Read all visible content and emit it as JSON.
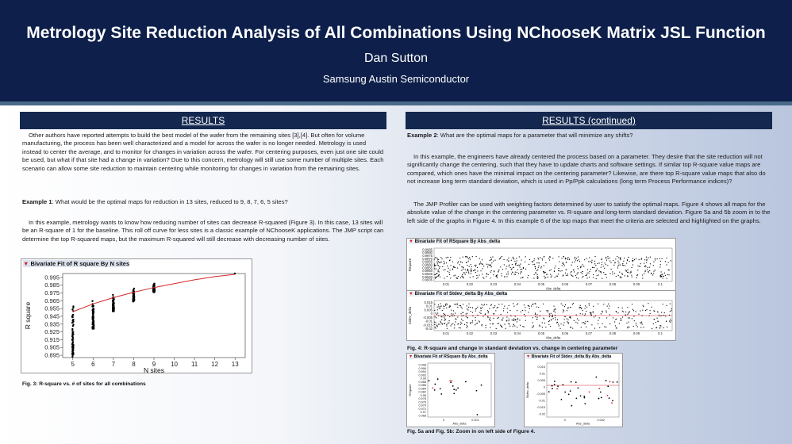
{
  "header": {
    "title": "Metrology Site Reduction Analysis of All Combinations Using NChooseK Matrix JSL Function",
    "author": "Dan Sutton",
    "org": "Samsung Austin Semiconductor"
  },
  "left": {
    "heading": "RESULTS",
    "p1": "Other authors have reported attempts to build the best model of the wafer from the remaining sites [3],[4]. But often for volume manufacturing, the process has been well characterized and a model for across the wafer is no longer needed. Metrology is used instead to center the average, and to monitor for changes in variation across the wafer. For centering purposes, even just one site could be used, but what if that site had a change in variation? Due to this concern, metrology will still use some number of multiple sites. Each scenario can allow some site reduction to maintain centering while monitoring for changes in variation from the remaining sites.",
    "ex1_label": "Example 1",
    "ex1_q": ": What would be the optimal maps for reduction in 13 sites, reduced to 9, 8, 7, 6, 5 sites?",
    "p2": "In this example, metrology wants to know how reducing number of sites can decrease R-squared (Figure 3). In this case, 13 sites will be an R-square of 1 for the baseline. This roll off curve for less sites is a classic example of NChooseK applications. The JMP script can determine the top R-squared maps, but the maximum R-squared will still decrease with decreasing number of sites.",
    "fig3_caption": "Fig. 3: R-square vs. # of sites for all combinations"
  },
  "right": {
    "heading": "RESULTS (continued)",
    "ex2_label": "Example 2",
    "ex2_q": ": What are the optimal maps for a parameter that will minimize any shifts?",
    "p1": "In this example, the engineers have already centered the process based on a parameter. They desire that the site reduction will not significantly change the centering, such that they have to update charts and software settings. If similar top R-square value maps are compared, which ones have the minimal impact on the centering parameter? Likewise, are there top R-square value maps that also do not increase long term standard deviation, which is used in Pp/Ppk calculations (long term Process Performance indices)?",
    "p2": "The JMP Profiler can be used with weighting factors determined by user to satisfy the optimal maps. Figure 4 shows all maps for the absolute value of the change in the centering parameter vs. R-square and long-term standard deviation. Figure 5a and 5b zoom in to the left side of the graphs in Figure 4. In this example 6 of the top maps that meet the criteria are selected and highlighted on the graphs.",
    "fig4_caption": "Fig. 4: R-square and change in standard deviation vs. change in centering parameter",
    "fig5_caption": "Fig. 5a and Fig. 5b: Zoom in on left side of Figure 4."
  },
  "chart_data": [
    {
      "type": "scatter",
      "title": "Bivariate Fit of R square By N sites",
      "xlabel": "N sites",
      "ylabel": "R square",
      "x_ticks": [
        5,
        6,
        7,
        8,
        9,
        10,
        11,
        12,
        13
      ],
      "y_ticks": [
        0.895,
        0.905,
        0.915,
        0.925,
        0.935,
        0.945,
        0.955,
        0.965,
        0.975,
        0.985,
        0.995
      ],
      "xlim": [
        4.5,
        13.5
      ],
      "ylim": [
        0.892,
        1.0
      ],
      "series": [
        {
          "x": 5,
          "min": 0.893,
          "max": 0.958
        },
        {
          "x": 6,
          "min": 0.929,
          "max": 0.966
        },
        {
          "x": 7,
          "min": 0.951,
          "max": 0.973
        },
        {
          "x": 8,
          "min": 0.964,
          "max": 0.981
        },
        {
          "x": 9,
          "min": 0.976,
          "max": 0.988
        },
        {
          "x": 13,
          "min": 1.0,
          "max": 1.0
        }
      ],
      "fit_line_color": "#d62728",
      "fit": [
        [
          5,
          0.951
        ],
        [
          6,
          0.961
        ],
        [
          7,
          0.969
        ],
        [
          8,
          0.976
        ],
        [
          9,
          0.982
        ],
        [
          10,
          0.987
        ],
        [
          11,
          0.992
        ],
        [
          12,
          0.996
        ],
        [
          13,
          0.999
        ]
      ]
    },
    {
      "type": "scatter",
      "title": "Bivariate Fit of RSquare By Abs_delta",
      "xlabel": "Abs_delta",
      "ylabel": "RSquare",
      "x_ticks": [
        "0.01",
        "0.02",
        "0.03",
        "0.04",
        "0.05",
        "0.06",
        "0.07",
        "0.08",
        "0.09",
        "0.1"
      ],
      "y_ticks": [
        "0.9985",
        "0.9980",
        "0.9975",
        "0.9970",
        "0.9965",
        "0.9960",
        "0.9955",
        "0.9950",
        "0.9945",
        "0.9940",
        "0.9935"
      ]
    },
    {
      "type": "scatter",
      "title": "Bivariate Fit of Stdev_delta By Abs_delta",
      "xlabel": "Abs_delta",
      "ylabel": "Stdev_delta",
      "x_ticks": [
        "0.01",
        "0.02",
        "0.03",
        "0.04",
        "0.05",
        "0.06",
        "0.07",
        "0.08",
        "0.09",
        "0.1"
      ],
      "y_ticks": [
        "0.015",
        "0.01",
        "0.005",
        "0",
        "-0.005",
        "-0.01",
        "-0.015",
        "-0.02"
      ]
    },
    {
      "type": "scatter",
      "title": "Bivariate Fit of RSquare By Abs_delta",
      "xlabel": "Abs_delta",
      "ylabel": "RSquare",
      "x_ticks": [
        "0",
        "0.001"
      ],
      "y_ticks": [
        "0.998",
        "0.996",
        "0.994",
        "0.992",
        "0.99",
        "0.988",
        "0.986",
        "0.984",
        "0.982",
        "0.98",
        "0.978",
        "0.976",
        "0.974",
        "0.972",
        "0.97",
        "0.968"
      ]
    },
    {
      "type": "scatter",
      "title": "Bivariate Fit of Stdev_delta By Abs_delta",
      "xlabel": "Abs_delta",
      "ylabel": "Stdev_delta",
      "x_ticks": [
        "0",
        "0.002"
      ],
      "y_ticks": [
        "0.015",
        "0.01",
        "0.005",
        "0",
        "-0.005",
        "-0.01",
        "-0.015",
        "-0.02"
      ]
    }
  ]
}
